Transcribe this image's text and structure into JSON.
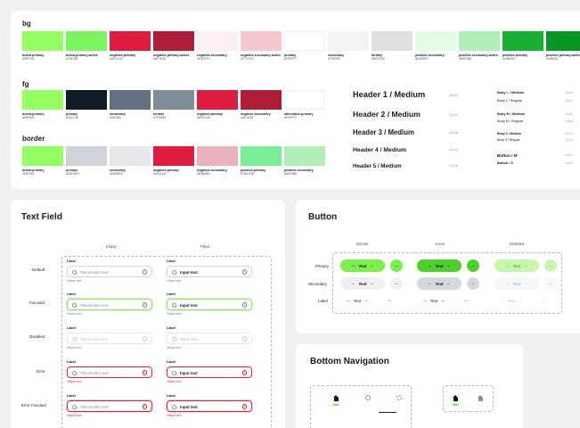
{
  "colors": {
    "sections": {
      "bg": "bg",
      "fg": "fg",
      "border": "border"
    },
    "bg_swatches": [
      {
        "name": "brand-primary",
        "hex": "#93FF62",
        "color": "#93FF62"
      },
      {
        "name": "brand-primary-active",
        "hex": "#7AF45F",
        "color": "#7AF45F"
      },
      {
        "name": "negative-primary",
        "hex": "#DE1D40",
        "color": "#DE1D40"
      },
      {
        "name": "negative-primary-active",
        "hex": "#AF1E38",
        "color": "#AF1E38"
      },
      {
        "name": "negative-secondary",
        "hex": "#FDEEF1",
        "color": "#FDEEF1"
      },
      {
        "name": "negative-secondary-active",
        "hex": "#F7C7D0",
        "color": "#F7C7D0"
      },
      {
        "name": "primary",
        "hex": "#FFFFFF",
        "color": "#FFFFFF"
      },
      {
        "name": "secondary",
        "hex": "#F3F5F5",
        "color": "#F3F5F5"
      },
      {
        "name": "tertiary",
        "hex": "#DFDFDF",
        "color": "#DFDFDF"
      },
      {
        "name": "positive-secondary",
        "hex": "#E4FBE5",
        "color": "#E4FBE5"
      },
      {
        "name": "positive-secondary-active",
        "hex": "#B0F0B8",
        "color": "#B0F0B8"
      },
      {
        "name": "positive-primary",
        "hex": "#1AB035",
        "color": "#1AB035"
      },
      {
        "name": "positive-primary-active",
        "hex": "#089625",
        "color": "#089625"
      }
    ],
    "fg_swatches": [
      {
        "name": "brand-primary",
        "hex": "#93FF62",
        "color": "#93FF62"
      },
      {
        "name": "primary",
        "hex": "#101C28",
        "color": "#101C28"
      },
      {
        "name": "secondary",
        "hex": "#637080",
        "color": "#637080"
      },
      {
        "name": "tertiary",
        "hex": "#7F8D98",
        "color": "#7F8D98"
      },
      {
        "name": "negative-primary",
        "hex": "#DE1D40",
        "color": "#DE1D40"
      },
      {
        "name": "negative-secondary",
        "hex": "#AF1E38",
        "color": "#AF1E38"
      },
      {
        "name": "alternative-primary",
        "hex": "#FFFFFF",
        "color": "#FFFFFF"
      }
    ],
    "border_swatches": [
      {
        "name": "brand-primary",
        "hex": "#93FF62",
        "color": "#93FF62"
      },
      {
        "name": "primary",
        "hex": "#D0D3D9",
        "color": "#D0D3D9"
      },
      {
        "name": "secondary",
        "hex": "#E6E8EB",
        "color": "#E6E8EB"
      },
      {
        "name": "negative-primary",
        "hex": "#DE1D40",
        "color": "#DE1D40"
      },
      {
        "name": "negative-secondary",
        "hex": "#E9B2BD",
        "color": "#E9B2BD"
      },
      {
        "name": "positive-primary",
        "hex": "#7DEC98",
        "color": "#7DEC98"
      },
      {
        "name": "positive-secondary",
        "hex": "#B0F0B8",
        "color": "#B0F0B8"
      }
    ]
  },
  "typography": {
    "headers": [
      {
        "label": "Header 1 / Medium",
        "spec": "36/40"
      },
      {
        "label": "Header 2 / Medium",
        "spec": "32/40"
      },
      {
        "label": "Header 3 / Medium",
        "spec": "28/36"
      },
      {
        "label": "Header 4 / Medium",
        "spec": "24/32"
      },
      {
        "label": "Header 5 / Medium",
        "spec": "20/28"
      }
    ],
    "body": [
      {
        "label": "Body L / Medium",
        "spec": "16/24"
      },
      {
        "label": "Body L / Regular",
        "spec": "16/24"
      },
      {
        "label": "Body M / Medium",
        "spec": "14/20"
      },
      {
        "label": "Body M / Regular",
        "spec": "14/20"
      },
      {
        "label": "Body S / Medium",
        "spec": "12/18"
      },
      {
        "label": "Body S / Regular",
        "spec": "12/18"
      },
      {
        "label": "Button / M",
        "spec": "16/24"
      },
      {
        "label": "Button / S",
        "spec": "14/20"
      }
    ]
  },
  "text_field": {
    "title": "Text Field",
    "columns": [
      "Empty",
      "Filled"
    ],
    "rows": [
      "Default",
      "Focused",
      "Disabled",
      "Error",
      "Error Focused"
    ],
    "label": "Label",
    "placeholder": "Placeholder text",
    "input_text": "Input text",
    "helper": "Helper text"
  },
  "button": {
    "title": "Button",
    "columns": [
      "Default",
      "Active",
      "Disabled"
    ],
    "rows": [
      "Primary",
      "Secondary",
      "Label"
    ],
    "text": "Text",
    "arrow_left": "←",
    "arrow_right": "→"
  },
  "bottom_navigation": {
    "title": "Bottom Navigation"
  }
}
